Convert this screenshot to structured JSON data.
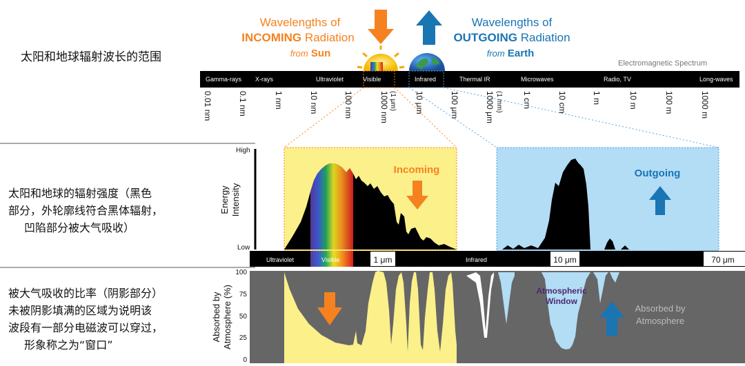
{
  "row_labels": {
    "row1": [
      "太阳和地球辐射波长的范围"
    ],
    "row2": [
      "太阳和地球的辐射强度（黑色",
      "部分，外轮廓线符合黑体辐射，",
      "凹陷部分被大气吸收）"
    ],
    "row3": [
      "被大气吸收的比率（阴影部分）",
      "未被阴影填满的区域为说明该",
      "波段有一部分电磁波可以穿过，",
      "形象称之为“窗口”"
    ]
  },
  "incoming": {
    "line1": "Wavelengths of",
    "bold": "INCOMING",
    "rest": " Radiation",
    "from": "from",
    "src": "Sun"
  },
  "outgoing": {
    "line1": "Wavelengths of",
    "bold": "OUTGOING",
    "rest": " Radiation",
    "from": "from",
    "src": "Earth"
  },
  "spectrum": {
    "title": "Electromagnetic Spectrum",
    "bands": [
      "Gamma-rays",
      "X-rays",
      "Ultraviolet",
      "Visible",
      "Infrared",
      "Thermal IR",
      "Microwaves",
      "Radio, TV",
      "Long-waves"
    ],
    "ticks": [
      "0.01 nm",
      "0.1 nm",
      "1 nm",
      "10 nm",
      "100 nm",
      "1000 nm",
      "(1 μm)",
      "10 μm",
      "100 μm",
      "1000 μm",
      "(1 mm)",
      "1 cm",
      "10 cm",
      "1 m",
      "10 m",
      "100 m",
      "1000 m"
    ]
  },
  "intensity": {
    "ylabel": "Energy Intensity",
    "ylabel_line1": "Energy",
    "ylabel_line2": "Intensity",
    "high": "High",
    "low": "Low",
    "incoming_label": "Incoming",
    "outgoing_label": "Outgoing"
  },
  "axis": {
    "ultraviolet": "Ultraviolet",
    "visible": "Visible",
    "infrared": "Infrared",
    "t1": "1 μm",
    "t10": "10 μm",
    "t70": "70 μm"
  },
  "absorption": {
    "ylabel_line1": "Absorbed by",
    "ylabel_line2": "Atmosphere (%)",
    "y100": "100",
    "y75": "75",
    "y50": "50",
    "y25": "25",
    "y0": "0",
    "window_line1": "Atmospheric",
    "window_line2": "Window",
    "absorbed_line1": "Absorbed by",
    "absorbed_line2": "Atmosphere"
  },
  "colors": {
    "orange": "#f5821f",
    "blue": "#1a75b3",
    "yellow_panel": "#fbf08a",
    "blue_panel": "#b3dcf5",
    "gray_absorb": "#666666",
    "window_text": "#4a2a6a"
  }
}
